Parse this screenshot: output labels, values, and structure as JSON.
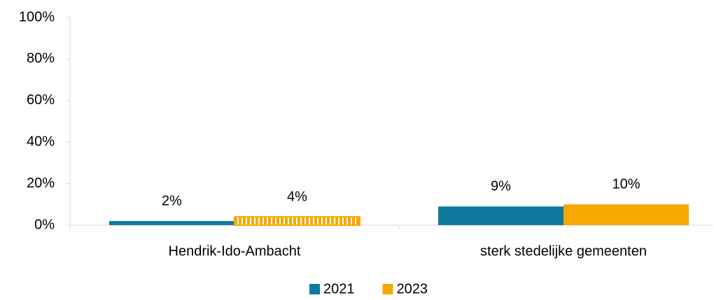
{
  "chart_data": {
    "type": "bar",
    "categories": [
      "Hendrik-Ido-Ambacht",
      "sterk stedelijke gemeenten"
    ],
    "series": [
      {
        "name": "2021",
        "color": "#0f7a9d",
        "values": [
          2,
          9
        ],
        "value_labels": [
          "2%",
          "9%"
        ]
      },
      {
        "name": "2023",
        "color": "#f6a800",
        "values": [
          4,
          10
        ],
        "value_labels": [
          "4%",
          "10%"
        ],
        "hatched": [
          true,
          false
        ]
      }
    ],
    "ylim": [
      0,
      100
    ],
    "yticks": [
      {
        "value": 0,
        "label": "0%"
      },
      {
        "value": 20,
        "label": "20%"
      },
      {
        "value": 40,
        "label": "40%"
      },
      {
        "value": 60,
        "label": "60%"
      },
      {
        "value": 80,
        "label": "80%"
      },
      {
        "value": 100,
        "label": "100%"
      }
    ],
    "legend": "bottom"
  }
}
